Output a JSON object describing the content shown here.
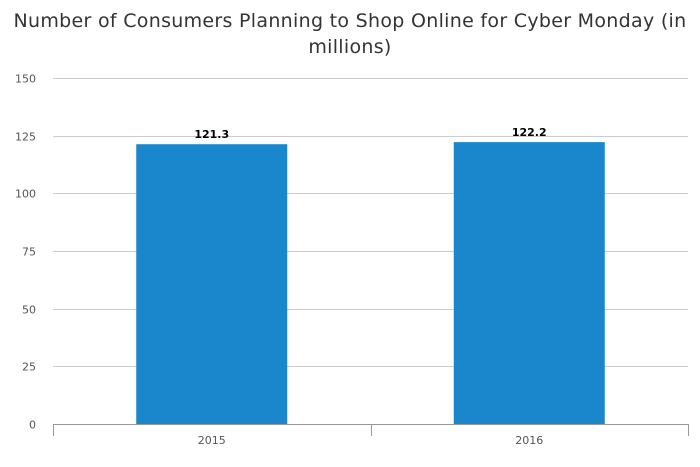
{
  "chart_data": {
    "type": "bar",
    "title": "Number of Consumers Planning to Shop Online for Cyber Monday (in millions)",
    "categories": [
      "2015",
      "2016"
    ],
    "values": [
      121.3,
      122.2
    ],
    "data_labels": [
      "121.3",
      "122.2"
    ],
    "xlabel": "",
    "ylabel": "",
    "ylim": [
      0,
      150
    ],
    "yticks": [
      "0",
      "25",
      "50",
      "75",
      "100",
      "125",
      "150"
    ],
    "grid": true,
    "legend": "none",
    "bar_color": "#1a87cc",
    "grid_color": "#cccccc",
    "axis_color": "#999999"
  }
}
